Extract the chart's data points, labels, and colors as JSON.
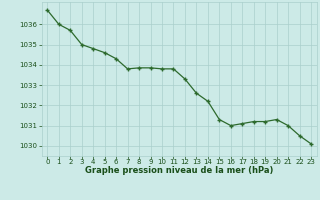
{
  "x": [
    0,
    1,
    2,
    3,
    4,
    5,
    6,
    7,
    8,
    9,
    10,
    11,
    12,
    13,
    14,
    15,
    16,
    17,
    18,
    19,
    20,
    21,
    22,
    23
  ],
  "y": [
    1036.7,
    1036.0,
    1035.7,
    1035.0,
    1034.8,
    1034.6,
    1034.3,
    1033.8,
    1033.85,
    1033.85,
    1033.8,
    1033.8,
    1033.3,
    1032.6,
    1032.2,
    1031.3,
    1031.0,
    1031.1,
    1031.2,
    1031.2,
    1031.3,
    1031.0,
    1030.5,
    1030.1
  ],
  "line_color": "#2d6a2d",
  "marker": "+",
  "marker_color": "#2d6a2d",
  "bg_color": "#cceae7",
  "grid_color": "#aacfcc",
  "xlabel": "Graphe pression niveau de la mer (hPa)",
  "xlabel_color": "#1a4f1a",
  "tick_color": "#1a4f1a",
  "ylim": [
    1029.5,
    1037.1
  ],
  "yticks": [
    1030,
    1031,
    1032,
    1033,
    1034,
    1035,
    1036
  ],
  "xticks": [
    0,
    1,
    2,
    3,
    4,
    5,
    6,
    7,
    8,
    9,
    10,
    11,
    12,
    13,
    14,
    15,
    16,
    17,
    18,
    19,
    20,
    21,
    22,
    23
  ]
}
